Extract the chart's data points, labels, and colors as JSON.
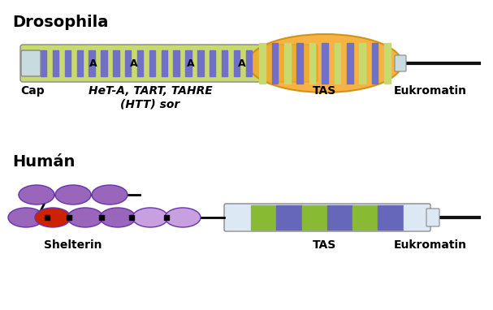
{
  "title_drosophila": "Drosophila",
  "title_human": "Humán",
  "label_cap": "Cap",
  "label_htt": "HeT-A, TART, TAHRE\n(HTT) sor",
  "label_tas": "TAS",
  "label_eukromatin": "Eukromatin",
  "label_shelterin": "Shelterin",
  "bg_color": "#ffffff",
  "dros_body_color": "#c8d96e",
  "dros_stripe_blue": "#7070c8",
  "dros_cap_color": "#c8dce0",
  "dros_tas_oval_color": "#f5a623",
  "dros_tas_stripe_green": "#c8d96e",
  "dros_tas_stripe_purple": "#7070c8",
  "human_oval_color": "#9966bb",
  "human_red_oval": "#cc2200",
  "human_tas_green": "#88bb33",
  "human_tas_blue": "#6666bb",
  "human_tas_light": "#dde8f5",
  "line_color": "#111111",
  "title_fontsize": 14,
  "label_fontsize": 10
}
